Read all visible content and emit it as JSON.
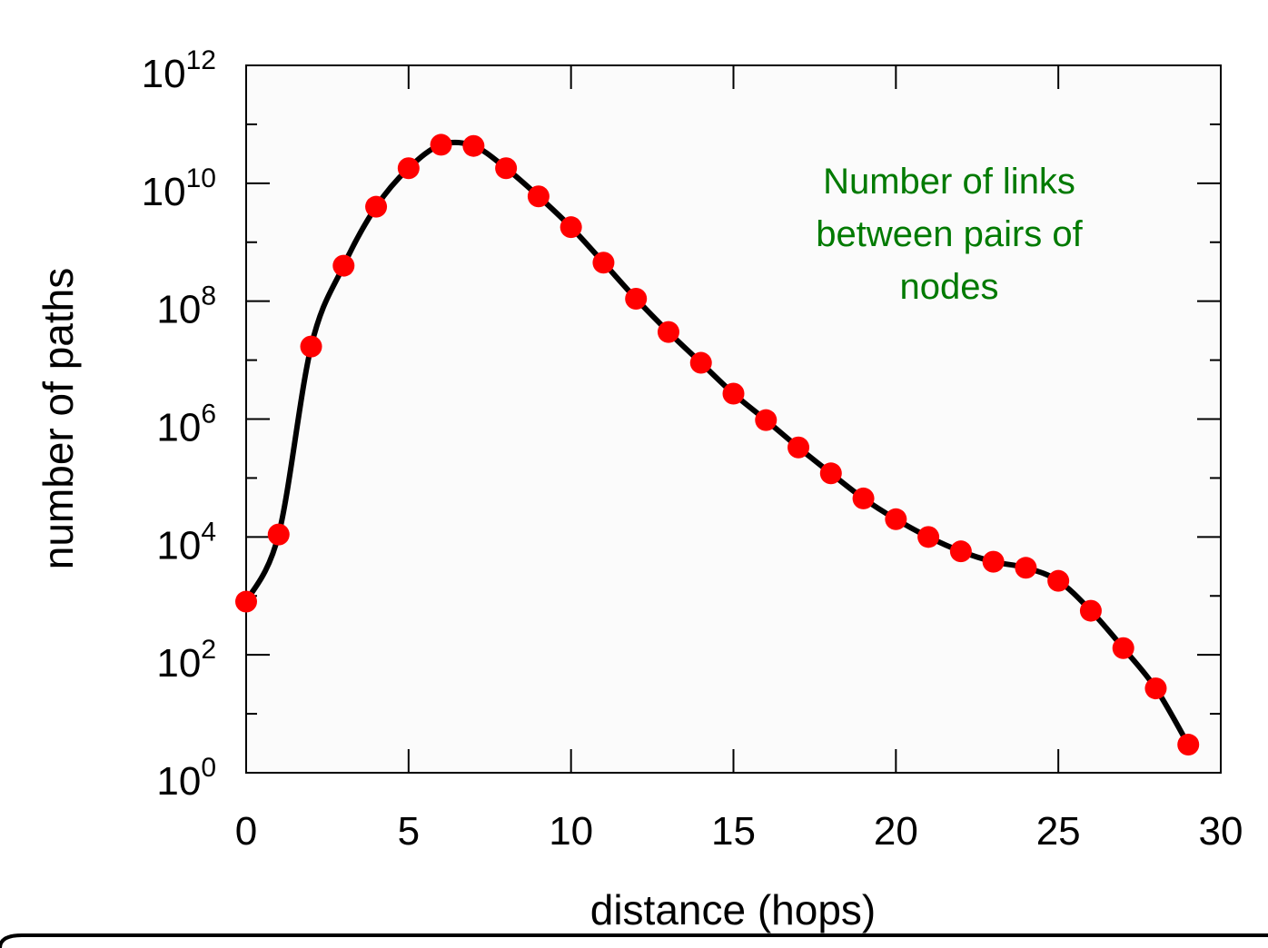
{
  "chart_data": {
    "type": "line",
    "xlabel": "distance (hops)",
    "ylabel": "number of paths",
    "xlim": [
      0,
      30
    ],
    "ylim_log10": [
      0,
      12
    ],
    "y_scale": "log",
    "x_ticks": [
      "0",
      "5",
      "10",
      "15",
      "20",
      "25",
      "30"
    ],
    "y_ticks": [
      {
        "base": "10",
        "exp": "0"
      },
      {
        "base": "10",
        "exp": "2"
      },
      {
        "base": "10",
        "exp": "4"
      },
      {
        "base": "10",
        "exp": "6"
      },
      {
        "base": "10",
        "exp": "8"
      },
      {
        "base": "10",
        "exp": "10"
      },
      {
        "base": "10",
        "exp": "12"
      }
    ],
    "annotation": [
      "Number of links",
      "between pairs of",
      "nodes"
    ],
    "colors": {
      "line": "#000000",
      "marker": "#ff0000",
      "annotation": "#007a00",
      "plot_background": "#fbfbfb"
    },
    "grid": false,
    "x": [
      0,
      1,
      2,
      3,
      4,
      5,
      6,
      7,
      8,
      9,
      10,
      11,
      12,
      13,
      14,
      15,
      16,
      17,
      18,
      19,
      20,
      21,
      22,
      23,
      24,
      25,
      26,
      27,
      28,
      29
    ],
    "y": [
      800,
      11000,
      17000000,
      400000000,
      4000000000,
      18000000000,
      45000000000,
      43000000000,
      18000000000,
      6000000000,
      1800000000,
      450000000,
      110000000,
      30000000,
      9000000,
      2700000,
      960000,
      330000,
      120000,
      45000,
      20000,
      10000,
      5700,
      3800,
      3000,
      1800,
      560,
      130,
      27,
      3
    ]
  }
}
